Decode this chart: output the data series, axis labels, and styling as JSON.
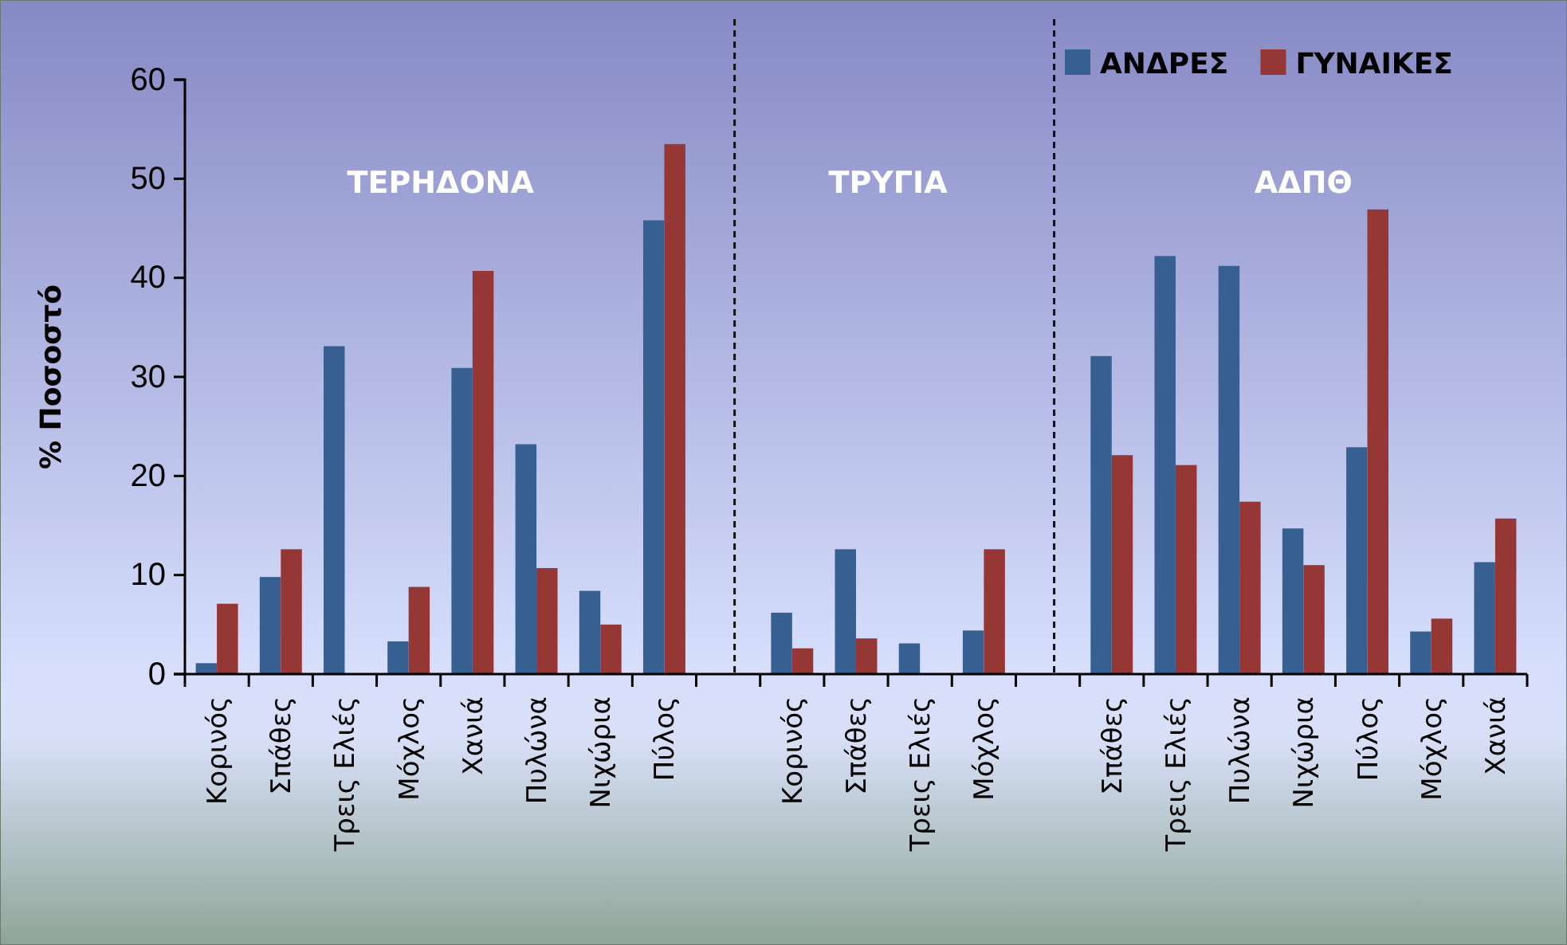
{
  "chart_data": {
    "type": "bar",
    "ylabel": "% Ποσοστό",
    "categories": [
      "Κορινός",
      "Σπάθες",
      "Τρεις Ελιές",
      "Μόχλος",
      "Χανιά",
      "Πυλώνα",
      "Νιχώρια",
      "Πύλος",
      null,
      "Κορινός",
      "Σπάθες",
      "Τρεις Ελιές",
      "Μόχλος",
      null,
      "Σπάθες",
      "Τρεις Ελιές",
      "Πυλώνα",
      "Νιχώρια",
      "Πύλος",
      "Μόχλος",
      "Χανιά"
    ],
    "series": [
      {
        "name": "ΑΝΔΡΕΣ",
        "color": "#376092",
        "values": [
          1.1,
          9.8,
          33.1,
          3.3,
          30.9,
          23.2,
          8.4,
          45.8,
          null,
          6.2,
          12.6,
          3.1,
          4.4,
          null,
          32.1,
          42.2,
          41.2,
          14.7,
          22.9,
          4.3,
          11.3
        ]
      },
      {
        "name": "ΓΥΝΑΙΚΕΣ",
        "color": "#953735",
        "values": [
          7.1,
          12.6,
          null,
          8.8,
          40.7,
          10.7,
          5.0,
          53.5,
          null,
          2.6,
          3.6,
          null,
          12.6,
          null,
          22.1,
          21.1,
          17.4,
          11.0,
          46.9,
          5.6,
          15.7
        ]
      }
    ],
    "ylim": [
      0,
      60
    ],
    "yticks": [
      0,
      10,
      20,
      30,
      40,
      50,
      60
    ],
    "legend": "top right",
    "annotations": [
      "ΤΕΡΗΔΟΝΑ",
      "ΤΡΥΓΙΑ",
      "ΑΔΠΘ"
    ]
  }
}
